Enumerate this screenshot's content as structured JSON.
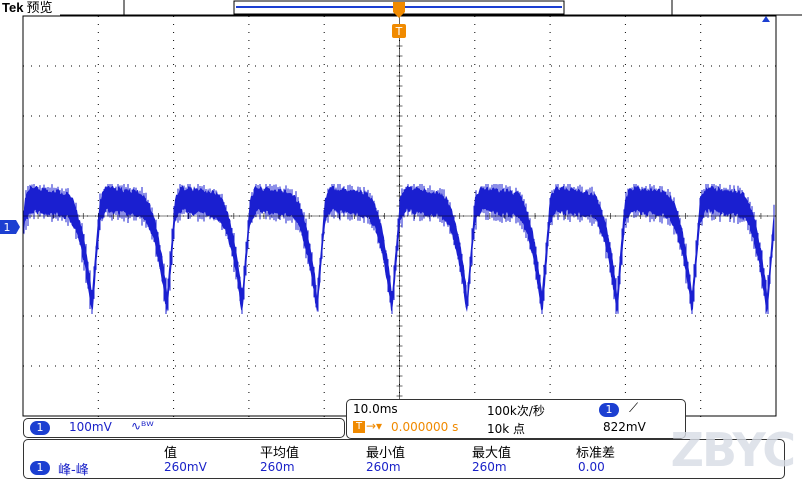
{
  "header": {
    "brand": "Tek",
    "mode": "预览"
  },
  "markers": {
    "trigger_pos_label": "T",
    "channel1_label": "1"
  },
  "status": {
    "channel_badge": "1",
    "vdiv": "100mV",
    "coupling_icon": "bandwidth-limit-icon",
    "timebase": "10.0ms",
    "trigger_badge": "T",
    "trigger_offset": "0.000000 s",
    "sample_rate": "100k次/秒",
    "record_length": "10k 点",
    "trig_channel": "1",
    "trig_slope_icon": "rising-edge-icon",
    "trig_level": "822mV"
  },
  "measure": {
    "headers": [
      "值",
      "平均值",
      "最小值",
      "最大值",
      "标准差"
    ],
    "row": {
      "channel": "1",
      "name": "峰-峰",
      "values": [
        "260mV",
        "260m",
        "260m",
        "260m",
        "0.00"
      ]
    }
  },
  "colors": {
    "trace": "#1a1fd0",
    "trigger": "#f08a00",
    "grid": "#000000"
  }
}
